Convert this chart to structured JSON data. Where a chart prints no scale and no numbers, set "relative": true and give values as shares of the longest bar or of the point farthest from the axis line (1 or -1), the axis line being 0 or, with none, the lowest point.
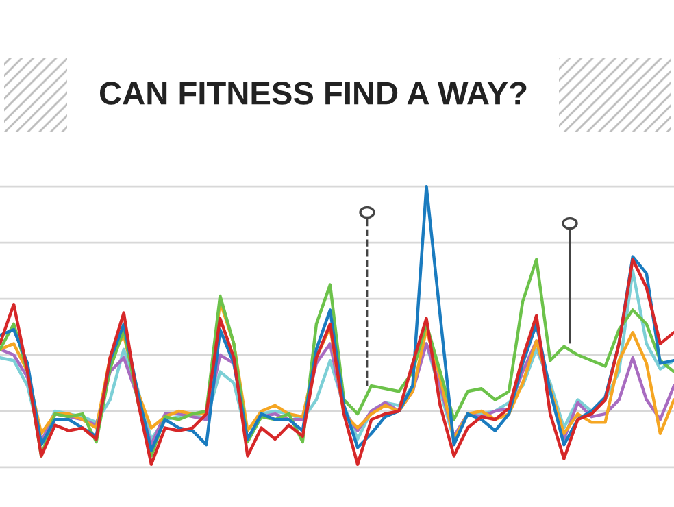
{
  "chart_data": {
    "type": "line",
    "title": "CAN FITNESS FIND A WAY?",
    "relative": true,
    "grid": "y",
    "legend": false,
    "marker": "none",
    "line_style": "solid",
    "categories": [
      null,
      null,
      null,
      null,
      null,
      null,
      null,
      null,
      null,
      null,
      null,
      null,
      null,
      null,
      null,
      null,
      null,
      null,
      null,
      null,
      null,
      null,
      null,
      null,
      null,
      null,
      null,
      null,
      null,
      null,
      null,
      null,
      null,
      null,
      null,
      null,
      null,
      null,
      null,
      null,
      null,
      null,
      null,
      null,
      null,
      null,
      null,
      null,
      null,
      null
    ],
    "series": [
      {
        "color": "#7ccfd6",
        "values": [
          0.39,
          0.38,
          0.29,
          0.09,
          0.2,
          0.19,
          0.18,
          0.16,
          0.24,
          0.42,
          0.28,
          0.1,
          0.17,
          0.18,
          0.19,
          0.17,
          0.34,
          0.3,
          0.1,
          0.19,
          0.2,
          0.19,
          0.17,
          0.24,
          0.38,
          0.22,
          0.1,
          0.2,
          0.23,
          0.22,
          0.29,
          0.44,
          0.27,
          0.1,
          0.19,
          0.19,
          0.2,
          0.23,
          0.29,
          0.42,
          0.3,
          0.14,
          0.24,
          0.2,
          0.24,
          0.34,
          0.7,
          0.44,
          0.35,
          0.38
        ]
      },
      {
        "color": "#a86bc0",
        "values": [
          0.42,
          0.4,
          0.32,
          0.09,
          0.19,
          0.18,
          0.17,
          0.15,
          0.34,
          0.39,
          0.25,
          0.08,
          0.19,
          0.19,
          0.18,
          0.17,
          0.4,
          0.37,
          0.1,
          0.18,
          0.19,
          0.17,
          0.17,
          0.37,
          0.44,
          0.2,
          0.13,
          0.2,
          0.23,
          0.2,
          0.27,
          0.44,
          0.29,
          0.11,
          0.19,
          0.18,
          0.2,
          0.21,
          0.34,
          0.45,
          0.27,
          0.1,
          0.23,
          0.18,
          0.19,
          0.24,
          0.39,
          0.24,
          0.17,
          0.29
        ]
      },
      {
        "color": "#f5a623",
        "values": [
          0.42,
          0.44,
          0.34,
          0.12,
          0.19,
          0.19,
          0.17,
          0.14,
          0.39,
          0.47,
          0.27,
          0.14,
          0.18,
          0.2,
          0.19,
          0.19,
          0.59,
          0.44,
          0.13,
          0.2,
          0.22,
          0.19,
          0.18,
          0.39,
          0.5,
          0.19,
          0.14,
          0.19,
          0.22,
          0.2,
          0.27,
          0.49,
          0.32,
          0.1,
          0.19,
          0.2,
          0.17,
          0.19,
          0.3,
          0.45,
          0.28,
          0.12,
          0.19,
          0.16,
          0.16,
          0.38,
          0.48,
          0.37,
          0.12,
          0.24
        ]
      },
      {
        "color": "#6cc24a",
        "values": [
          0.42,
          0.51,
          0.34,
          0.04,
          0.19,
          0.18,
          0.19,
          0.09,
          0.35,
          0.49,
          0.24,
          0.04,
          0.18,
          0.17,
          0.19,
          0.2,
          0.61,
          0.44,
          0.09,
          0.18,
          0.17,
          0.19,
          0.09,
          0.51,
          0.65,
          0.24,
          0.19,
          0.29,
          0.28,
          0.27,
          0.34,
          0.51,
          0.34,
          0.17,
          0.27,
          0.28,
          0.24,
          0.27,
          0.59,
          0.74,
          0.38,
          0.43,
          0.4,
          0.38,
          0.36,
          0.49,
          0.56,
          0.51,
          0.38,
          0.34
        ]
      },
      {
        "color": "#1a7bbf",
        "values": [
          0.47,
          0.49,
          0.37,
          0.08,
          0.17,
          0.17,
          0.14,
          0.11,
          0.38,
          0.51,
          0.27,
          0.06,
          0.17,
          0.14,
          0.13,
          0.08,
          0.49,
          0.37,
          0.1,
          0.19,
          0.17,
          0.17,
          0.13,
          0.42,
          0.56,
          0.22,
          0.07,
          0.12,
          0.18,
          0.2,
          0.29,
          1,
          0.54,
          0.08,
          0.19,
          0.17,
          0.13,
          0.19,
          0.37,
          0.51,
          0.27,
          0.08,
          0.17,
          0.2,
          0.25,
          0.44,
          0.75,
          0.69,
          0.37,
          0.38
        ]
      },
      {
        "color": "#d62728",
        "values": [
          0.44,
          0.58,
          0.34,
          0.04,
          0.15,
          0.13,
          0.14,
          0.1,
          0.39,
          0.55,
          0.24,
          0.01,
          0.14,
          0.13,
          0.14,
          0.19,
          0.53,
          0.39,
          0.04,
          0.14,
          0.1,
          0.15,
          0.11,
          0.39,
          0.51,
          0.19,
          0.01,
          0.17,
          0.19,
          0.2,
          0.37,
          0.53,
          0.22,
          0.04,
          0.14,
          0.18,
          0.17,
          0.21,
          0.39,
          0.54,
          0.19,
          0.03,
          0.17,
          0.19,
          0.24,
          0.44,
          0.74,
          0.64,
          0.44,
          0.48
        ]
      }
    ]
  }
}
